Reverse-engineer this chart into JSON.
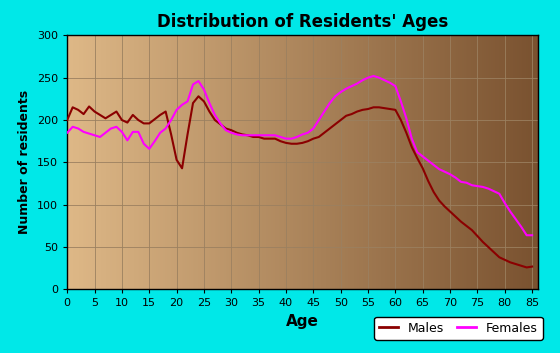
{
  "title": "Distribution of Residents' Ages",
  "xlabel": "Age",
  "ylabel": "Number of residents",
  "xlim": [
    0,
    86
  ],
  "ylim": [
    0,
    300
  ],
  "xticks": [
    0,
    5,
    10,
    15,
    20,
    25,
    30,
    35,
    40,
    45,
    50,
    55,
    60,
    65,
    70,
    75,
    80,
    85
  ],
  "yticks": [
    0,
    50,
    100,
    150,
    200,
    250,
    300
  ],
  "bg_outer": "#00e8e8",
  "bg_inner_left": "#deb887",
  "bg_inner_right": "#7a5230",
  "grid_color": "#9b8060",
  "male_color": "#8b0000",
  "female_color": "#ff00ff",
  "males_ages": [
    0,
    1,
    2,
    3,
    4,
    5,
    6,
    7,
    8,
    9,
    10,
    11,
    12,
    13,
    14,
    15,
    16,
    17,
    18,
    19,
    20,
    21,
    22,
    23,
    24,
    25,
    26,
    27,
    28,
    29,
    30,
    31,
    32,
    33,
    34,
    35,
    36,
    37,
    38,
    39,
    40,
    41,
    42,
    43,
    44,
    45,
    46,
    47,
    48,
    49,
    50,
    51,
    52,
    53,
    54,
    55,
    56,
    57,
    58,
    59,
    60,
    61,
    62,
    63,
    64,
    65,
    66,
    67,
    68,
    69,
    70,
    71,
    72,
    73,
    74,
    75,
    76,
    77,
    78,
    79,
    80,
    81,
    82,
    83,
    84,
    85
  ],
  "males_vals": [
    200,
    215,
    212,
    207,
    216,
    210,
    206,
    202,
    206,
    210,
    200,
    197,
    206,
    200,
    196,
    196,
    201,
    206,
    210,
    183,
    153,
    143,
    183,
    220,
    228,
    222,
    210,
    200,
    195,
    190,
    188,
    185,
    183,
    182,
    180,
    180,
    178,
    178,
    178,
    175,
    173,
    172,
    172,
    173,
    175,
    178,
    180,
    185,
    190,
    195,
    200,
    205,
    207,
    210,
    212,
    213,
    215,
    215,
    214,
    213,
    212,
    200,
    185,
    168,
    155,
    143,
    128,
    115,
    105,
    98,
    92,
    86,
    80,
    75,
    70,
    63,
    56,
    50,
    44,
    38,
    35,
    32,
    30,
    28,
    26,
    27
  ],
  "females_ages": [
    0,
    1,
    2,
    3,
    4,
    5,
    6,
    7,
    8,
    9,
    10,
    11,
    12,
    13,
    14,
    15,
    16,
    17,
    18,
    19,
    20,
    21,
    22,
    23,
    24,
    25,
    26,
    27,
    28,
    29,
    30,
    31,
    32,
    33,
    34,
    35,
    36,
    37,
    38,
    39,
    40,
    41,
    42,
    43,
    44,
    45,
    46,
    47,
    48,
    49,
    50,
    51,
    52,
    53,
    54,
    55,
    56,
    57,
    58,
    59,
    60,
    61,
    62,
    63,
    64,
    65,
    66,
    67,
    68,
    69,
    70,
    71,
    72,
    73,
    74,
    75,
    76,
    77,
    78,
    79,
    80,
    81,
    82,
    83,
    84,
    85
  ],
  "females_vals": [
    185,
    192,
    190,
    186,
    184,
    182,
    180,
    185,
    190,
    192,
    186,
    176,
    186,
    186,
    172,
    166,
    175,
    185,
    190,
    200,
    212,
    218,
    222,
    242,
    246,
    236,
    220,
    206,
    196,
    188,
    185,
    183,
    182,
    182,
    182,
    182,
    182,
    182,
    182,
    180,
    178,
    178,
    180,
    183,
    185,
    190,
    200,
    210,
    220,
    228,
    233,
    237,
    240,
    243,
    247,
    250,
    252,
    250,
    247,
    244,
    240,
    222,
    202,
    178,
    162,
    157,
    152,
    147,
    142,
    139,
    136,
    132,
    127,
    126,
    123,
    122,
    121,
    119,
    116,
    113,
    102,
    92,
    83,
    74,
    64,
    64
  ],
  "legend_bg": "#ffffff",
  "legend_labels": [
    "Males",
    "Females"
  ]
}
